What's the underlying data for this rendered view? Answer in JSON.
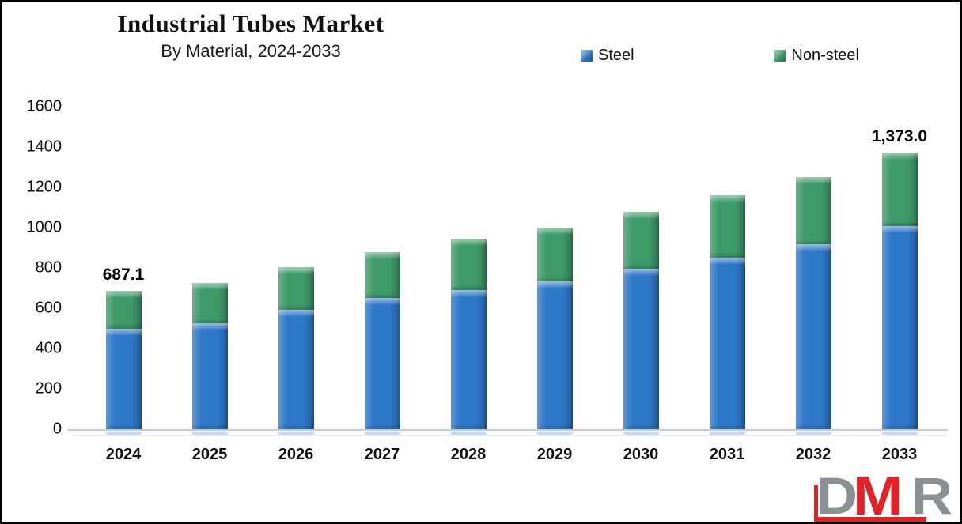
{
  "header": {
    "title": "Industrial Tubes Market",
    "subtitle": "By Material, 2024-2033"
  },
  "legend": [
    {
      "label": "Steel",
      "color": "#2E78C8"
    },
    {
      "label": "Non-steel",
      "color": "#3F9A6A"
    }
  ],
  "chart_data": {
    "type": "bar",
    "stacked": true,
    "title": "Industrial Tubes Market",
    "subtitle": "By Material, 2024-2033",
    "categories": [
      "2024",
      "2025",
      "2026",
      "2027",
      "2028",
      "2029",
      "2030",
      "2031",
      "2032",
      "2033"
    ],
    "series": [
      {
        "name": "Steel",
        "color": "#2E78C8",
        "values": [
          497,
          527,
          592,
          650,
          690,
          735,
          795,
          852,
          917,
          1008
        ]
      },
      {
        "name": "Non-steel",
        "color": "#3F9A6A",
        "values": [
          190.1,
          200,
          211,
          230,
          255,
          265,
          285,
          308,
          333,
          365
        ]
      }
    ],
    "totals": [
      687.1,
      727,
      803,
      880,
      945,
      1000,
      1080,
      1160,
      1250,
      1373
    ],
    "data_labels": [
      {
        "category_index": 0,
        "text": "687.1"
      },
      {
        "category_index": 9,
        "text": "1,373.0"
      }
    ],
    "yticks": [
      0,
      200,
      400,
      600,
      800,
      1000,
      1200,
      1400,
      1600
    ],
    "ylim": [
      0,
      1600
    ],
    "xlabel": "",
    "ylabel": "",
    "grid": false,
    "legend_position": "top"
  },
  "watermark": {
    "letters": [
      {
        "char": "D",
        "color": "#8B9095"
      },
      {
        "char": "M",
        "color": "#E32227"
      },
      {
        "char": "R",
        "color": "#8B9095"
      }
    ],
    "accent_color": "#E32227"
  }
}
